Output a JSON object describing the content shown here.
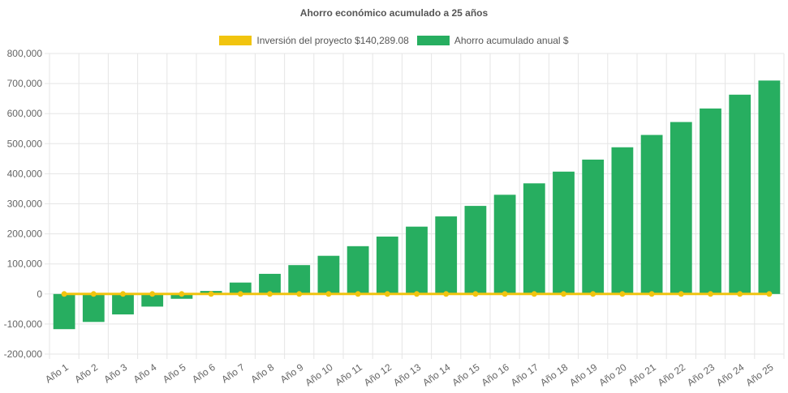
{
  "chart_data": {
    "type": "bar",
    "title": "Ahorro económico acumulado a 25 años",
    "categories": [
      "Año 1",
      "Año 2",
      "Año 3",
      "Año 4",
      "Año 5",
      "Año 6",
      "Año 7",
      "Año 8",
      "Año 9",
      "Año 10",
      "Año 11",
      "Año 12",
      "Año 13",
      "Año 14",
      "Año 15",
      "Año 16",
      "Año 17",
      "Año 18",
      "Año 19",
      "Año 20",
      "Año 21",
      "Año 22",
      "Año 23",
      "Año 24",
      "Año 25"
    ],
    "series": [
      {
        "name": "Inversión del proyecto $140,289.08",
        "type": "line",
        "color": "#f1c40f",
        "values": [
          0,
          0,
          0,
          0,
          0,
          0,
          0,
          0,
          0,
          0,
          0,
          0,
          0,
          0,
          0,
          0,
          0,
          0,
          0,
          0,
          0,
          0,
          0,
          0,
          0
        ]
      },
      {
        "name": "Ahorro acumulado anual $",
        "type": "bar",
        "color": "#27ae60",
        "values": [
          -117000,
          -93000,
          -68000,
          -42000,
          -16000,
          10000,
          38000,
          67000,
          96000,
          127000,
          159000,
          191000,
          224000,
          258000,
          293000,
          330000,
          368000,
          407000,
          447000,
          488000,
          529000,
          572000,
          617000,
          663000,
          710000
        ]
      }
    ],
    "ylim": [
      -200000,
      800000
    ],
    "yticks": [
      "800,000",
      "700,000",
      "600,000",
      "500,000",
      "400,000",
      "300,000",
      "200,000",
      "100,000",
      "0",
      "-100,000",
      "-200,000"
    ],
    "ytick_values": [
      800000,
      700000,
      600000,
      500000,
      400000,
      300000,
      200000,
      100000,
      0,
      -100000,
      -200000
    ],
    "xlabel": "",
    "ylabel": "",
    "grid": true,
    "legend_position": "top"
  }
}
